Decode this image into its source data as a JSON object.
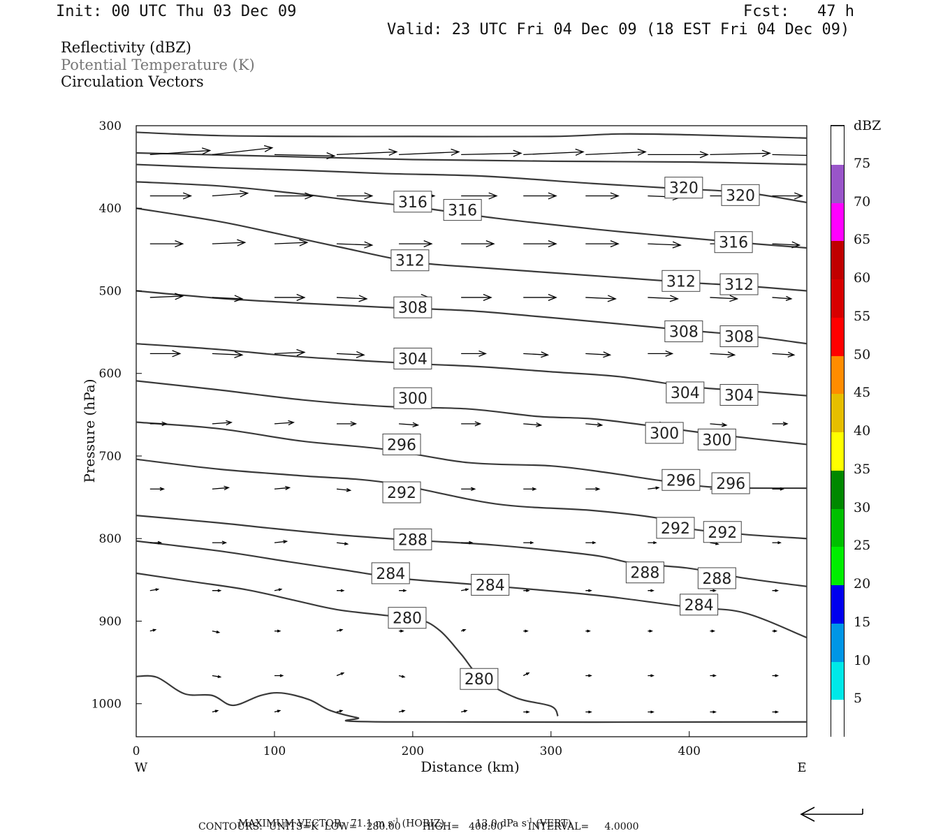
{
  "header": {
    "init": "Init: 00 UTC Thu 03 Dec 09",
    "fcst": "Fcst:   47 h",
    "valid": "Valid: 23 UTC Fri 04 Dec 09 (18 EST Fri 04 Dec 09)"
  },
  "fields": {
    "reflectivity": "Reflectivity (dBZ)",
    "theta": "Potential Temperature (K)",
    "vectors": "Circulation Vectors"
  },
  "footer": {
    "max_vector_label": "MAXIMUM VECTOR:",
    "max_horiz_value": "71.1",
    "max_horiz_unit": "m s",
    "max_horiz_exp": "-1",
    "max_horiz_tag": "(HORIZ)",
    "max_vert_value": "13.0",
    "max_vert_unit": "dPa s",
    "max_vert_exp": "-1",
    "max_vert_tag": "(VERT)",
    "contours": "CONTOURS:  UNITS=K  LOW=   280.00       HIGH=   408.00        INTERVAL=     4.0000"
  },
  "colors": {
    "contour": "#3a3a3a",
    "vector": "#000000",
    "text": "#111111"
  },
  "chart_data": {
    "type": "contour",
    "xlabel": "Distance (km)",
    "ylabel": "Pressure (hPa)",
    "xlim": [
      0,
      485
    ],
    "ylim": [
      1040,
      300
    ],
    "x_ticks": [
      0,
      100,
      200,
      300,
      400
    ],
    "y_ticks": [
      300,
      400,
      500,
      600,
      700,
      800,
      900,
      1000
    ],
    "x_end_labels": {
      "left": "W",
      "right": "E"
    },
    "colorbar": {
      "unit": "dBZ",
      "labels": [
        5,
        10,
        15,
        20,
        25,
        30,
        35,
        40,
        45,
        50,
        55,
        60,
        65,
        70,
        75
      ],
      "bins": [
        {
          "from": 0,
          "to": 5,
          "color": "#ffffff"
        },
        {
          "from": 5,
          "to": 10,
          "color": "#00e8e8"
        },
        {
          "from": 10,
          "to": 15,
          "color": "#0096e6"
        },
        {
          "from": 15,
          "to": 20,
          "color": "#0000ee"
        },
        {
          "from": 20,
          "to": 25,
          "color": "#00ee00"
        },
        {
          "from": 25,
          "to": 30,
          "color": "#00c000"
        },
        {
          "from": 30,
          "to": 35,
          "color": "#008800"
        },
        {
          "from": 35,
          "to": 40,
          "color": "#ffff00"
        },
        {
          "from": 40,
          "to": 45,
          "color": "#e6be00"
        },
        {
          "from": 45,
          "to": 50,
          "color": "#ff8c00"
        },
        {
          "from": 50,
          "to": 55,
          "color": "#ff0000"
        },
        {
          "from": 55,
          "to": 60,
          "color": "#d70000"
        },
        {
          "from": 60,
          "to": 65,
          "color": "#c00000"
        },
        {
          "from": 65,
          "to": 70,
          "color": "#ff00ff"
        },
        {
          "from": 70,
          "to": 75,
          "color": "#9955c9"
        },
        {
          "from": 75,
          "to": 80,
          "color": "#ffffff"
        }
      ]
    },
    "isentropes": [
      {
        "value": 280,
        "points": [
          [
            0,
            967
          ],
          [
            15,
            968
          ],
          [
            35,
            988
          ],
          [
            55,
            990
          ],
          [
            70,
            1002
          ],
          [
            90,
            990
          ],
          [
            105,
            987
          ],
          [
            125,
            995
          ],
          [
            140,
            1008
          ],
          [
            160,
            1017
          ],
          [
            180,
            1022
          ],
          [
            485,
            1022
          ]
        ]
      },
      {
        "value": 280,
        "points": [
          [
            0,
            842
          ],
          [
            40,
            852
          ],
          [
            80,
            862
          ],
          [
            115,
            875
          ],
          [
            145,
            886
          ],
          [
            180,
            893
          ],
          [
            205,
            898
          ],
          [
            220,
            912
          ],
          [
            235,
            940
          ],
          [
            250,
            970
          ],
          [
            275,
            993
          ],
          [
            300,
            1003
          ],
          [
            305,
            1015
          ]
        ],
        "labels": [
          [
            196,
            896
          ],
          [
            248,
            970
          ]
        ]
      },
      {
        "value": 284,
        "points": [
          [
            0,
            803
          ],
          [
            60,
            815
          ],
          [
            110,
            828
          ],
          [
            150,
            838
          ],
          [
            190,
            848
          ],
          [
            240,
            855
          ],
          [
            290,
            862
          ],
          [
            340,
            870
          ],
          [
            400,
            883
          ],
          [
            440,
            890
          ],
          [
            485,
            920
          ]
        ],
        "labels": [
          [
            184,
            842
          ],
          [
            256,
            856
          ],
          [
            407,
            880
          ]
        ]
      },
      {
        "value": 288,
        "points": [
          [
            0,
            772
          ],
          [
            60,
            781
          ],
          [
            100,
            788
          ],
          [
            150,
            796
          ],
          [
            200,
            802
          ],
          [
            260,
            808
          ],
          [
            330,
            820
          ],
          [
            360,
            830
          ],
          [
            400,
            836
          ],
          [
            440,
            848
          ],
          [
            485,
            858
          ]
        ],
        "labels": [
          [
            200,
            801
          ],
          [
            368,
            841
          ],
          [
            420,
            848
          ]
        ]
      },
      {
        "value": 292,
        "points": [
          [
            0,
            704
          ],
          [
            60,
            716
          ],
          [
            120,
            724
          ],
          [
            180,
            732
          ],
          [
            260,
            758
          ],
          [
            330,
            766
          ],
          [
            380,
            776
          ],
          [
            400,
            788
          ],
          [
            440,
            795
          ],
          [
            485,
            800
          ]
        ],
        "labels": [
          [
            192,
            744
          ],
          [
            390,
            787
          ],
          [
            424,
            792
          ]
        ]
      },
      {
        "value": 296,
        "points": [
          [
            0,
            659
          ],
          [
            60,
            667
          ],
          [
            120,
            682
          ],
          [
            180,
            692
          ],
          [
            240,
            708
          ],
          [
            300,
            712
          ],
          [
            340,
            720
          ],
          [
            380,
            730
          ],
          [
            420,
            738
          ],
          [
            485,
            739
          ]
        ],
        "labels": [
          [
            192,
            686
          ],
          [
            394,
            729
          ],
          [
            430,
            733
          ]
        ]
      },
      {
        "value": 300,
        "points": [
          [
            0,
            609
          ],
          [
            60,
            620
          ],
          [
            120,
            632
          ],
          [
            180,
            640
          ],
          [
            240,
            643
          ],
          [
            290,
            652
          ],
          [
            330,
            655
          ],
          [
            370,
            663
          ],
          [
            420,
            674
          ],
          [
            485,
            686
          ]
        ],
        "labels": [
          [
            200,
            630
          ],
          [
            382,
            672
          ],
          [
            420,
            680
          ]
        ]
      },
      {
        "value": 304,
        "points": [
          [
            0,
            564
          ],
          [
            60,
            571
          ],
          [
            120,
            580
          ],
          [
            200,
            588
          ],
          [
            250,
            592
          ],
          [
            300,
            598
          ],
          [
            350,
            604
          ],
          [
            400,
            616
          ],
          [
            440,
            621
          ],
          [
            485,
            627
          ]
        ],
        "labels": [
          [
            200,
            582
          ],
          [
            397,
            623
          ],
          [
            436,
            626
          ]
        ]
      },
      {
        "value": 308,
        "points": [
          [
            0,
            500
          ],
          [
            60,
            509
          ],
          [
            120,
            515
          ],
          [
            180,
            520
          ],
          [
            240,
            524
          ],
          [
            290,
            531
          ],
          [
            330,
            537
          ],
          [
            400,
            548
          ],
          [
            440,
            554
          ],
          [
            485,
            564
          ]
        ],
        "labels": [
          [
            200,
            520
          ],
          [
            396,
            549
          ],
          [
            436,
            555
          ]
        ]
      },
      {
        "value": 312,
        "points": [
          [
            0,
            400
          ],
          [
            60,
            416
          ],
          [
            100,
            430
          ],
          [
            150,
            448
          ],
          [
            200,
            465
          ],
          [
            250,
            472
          ],
          [
            300,
            478
          ],
          [
            350,
            484
          ],
          [
            400,
            490
          ],
          [
            440,
            494
          ],
          [
            485,
            500
          ]
        ],
        "labels": [
          [
            198,
            463
          ],
          [
            394,
            488
          ],
          [
            436,
            492
          ]
        ]
      },
      {
        "value": 316,
        "points": [
          [
            0,
            368
          ],
          [
            60,
            373
          ],
          [
            110,
            381
          ],
          [
            160,
            391
          ],
          [
            200,
            398
          ],
          [
            260,
            412
          ],
          [
            330,
            425
          ],
          [
            380,
            433
          ],
          [
            440,
            442
          ],
          [
            485,
            448
          ]
        ],
        "labels": [
          [
            200,
            392
          ],
          [
            236,
            402
          ],
          [
            432,
            441
          ]
        ]
      },
      {
        "value": 320,
        "points": [
          [
            0,
            347
          ],
          [
            60,
            351
          ],
          [
            120,
            354
          ],
          [
            180,
            358
          ],
          [
            250,
            361
          ],
          [
            330,
            370
          ],
          [
            390,
            376
          ],
          [
            440,
            381
          ],
          [
            485,
            393
          ]
        ],
        "labels": [
          [
            396,
            375
          ],
          [
            437,
            384
          ]
        ]
      },
      {
        "value": null,
        "points": [
          [
            0,
            333
          ],
          [
            100,
            337
          ],
          [
            200,
            341
          ],
          [
            300,
            343
          ],
          [
            400,
            344
          ],
          [
            485,
            347
          ]
        ]
      },
      {
        "value": null,
        "points": [
          [
            0,
            308
          ],
          [
            60,
            312
          ],
          [
            140,
            313
          ],
          [
            200,
            313
          ],
          [
            300,
            313
          ],
          [
            350,
            310
          ],
          [
            400,
            311
          ],
          [
            485,
            315
          ]
        ]
      }
    ],
    "vectors": {
      "columns_x": [
        10,
        55,
        100,
        145,
        190,
        235,
        280,
        325,
        370,
        415,
        460
      ],
      "rows": [
        {
          "p": 335,
          "u": [
            44,
            44,
            44,
            44,
            44,
            44,
            44,
            44,
            44,
            44,
            44
          ],
          "w": [
            -3,
            -5,
            1,
            -2,
            -2,
            -1,
            -2,
            -2,
            0,
            -1,
            1
          ]
        },
        {
          "p": 385,
          "u": [
            30,
            26,
            28,
            26,
            26,
            26,
            24,
            24,
            24,
            24,
            22
          ],
          "w": [
            0,
            -2,
            0,
            0,
            0,
            0,
            0,
            0,
            1,
            0,
            0
          ]
        },
        {
          "p": 443,
          "u": [
            24,
            24,
            24,
            26,
            24,
            24,
            24,
            24,
            24,
            24,
            20
          ],
          "w": [
            0,
            -1,
            -1,
            1,
            0,
            0,
            0,
            0,
            1,
            0,
            1
          ]
        },
        {
          "p": 508,
          "u": [
            24,
            22,
            22,
            22,
            22,
            22,
            24,
            22,
            22,
            20,
            14
          ],
          "w": [
            -1,
            1,
            0,
            1,
            0,
            0,
            0,
            1,
            1,
            1,
            1
          ]
        },
        {
          "p": 576,
          "u": [
            22,
            22,
            22,
            20,
            20,
            18,
            18,
            18,
            18,
            18,
            16
          ],
          "w": [
            0,
            1,
            -1,
            1,
            -1,
            0,
            1,
            1,
            0,
            1,
            1
          ]
        },
        {
          "p": 661,
          "u": [
            12,
            14,
            14,
            14,
            14,
            14,
            13,
            12,
            12,
            12,
            11
          ],
          "w": [
            0,
            -1,
            -1,
            0,
            1,
            0,
            1,
            1,
            0,
            1,
            0
          ]
        },
        {
          "p": 740,
          "u": [
            10,
            12,
            11,
            10,
            10,
            10,
            9,
            10,
            8,
            8,
            8
          ],
          "w": [
            0,
            -1,
            -1,
            1,
            0,
            0,
            0,
            0,
            -1,
            0,
            0
          ]
        },
        {
          "p": 805,
          "u": [
            8,
            10,
            9,
            8,
            8,
            8,
            7,
            7,
            6,
            6,
            6
          ],
          "w": [
            0,
            0,
            -1,
            1,
            -1,
            0,
            0,
            0,
            0,
            1,
            0
          ]
        },
        {
          "p": 863,
          "u": [
            6,
            6,
            5,
            5,
            5,
            5,
            4,
            4,
            4,
            4,
            4
          ],
          "w": [
            -1,
            0,
            -1,
            0,
            0,
            -1,
            0,
            0,
            0,
            0,
            0
          ]
        },
        {
          "p": 912,
          "u": [
            4,
            5,
            4,
            4,
            3,
            3,
            3,
            3,
            3,
            3,
            3
          ],
          "w": [
            -1,
            1,
            0,
            -1,
            0,
            -1,
            0,
            0,
            0,
            0,
            0
          ]
        },
        {
          "p": 966,
          "u": [
            0,
            6,
            6,
            5,
            4,
            4,
            4,
            4,
            4,
            4,
            4
          ],
          "w": [
            0,
            1,
            0,
            -2,
            1,
            -1,
            -2,
            0,
            0,
            0,
            0
          ]
        },
        {
          "p": 1010,
          "u": [
            0,
            4,
            4,
            4,
            4,
            4,
            4,
            4,
            4,
            4,
            4
          ],
          "w": [
            0,
            -1,
            -1,
            -1,
            -1,
            -1,
            0,
            0,
            0,
            0,
            0
          ]
        }
      ]
    }
  }
}
